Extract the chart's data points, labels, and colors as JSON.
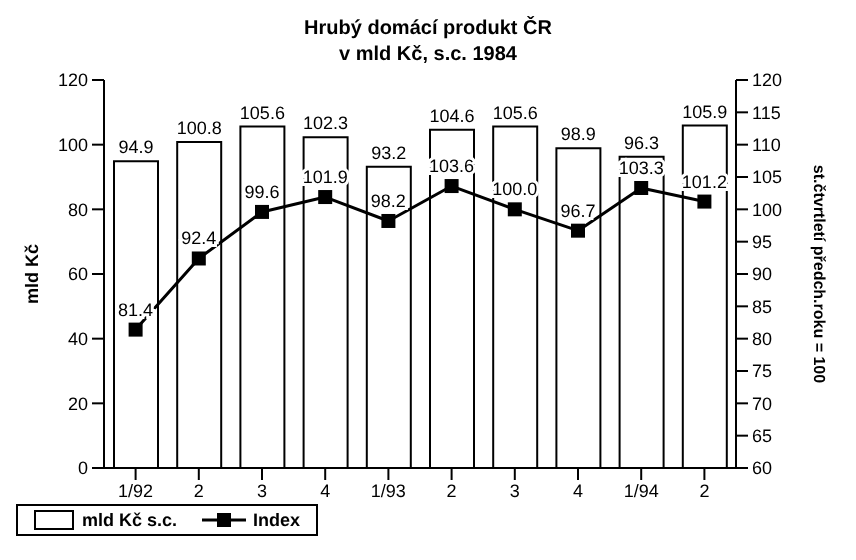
{
  "chart_data": {
    "type": "bar",
    "title": "Hrubý domácí produkt ČR\nv mld Kč, s.c. 1984",
    "ylabel": "mld Kč",
    "y2label": "st.čtvrtletí předch.roku = 100",
    "categories": [
      "1/92",
      "2",
      "3",
      "4",
      "1/93",
      "2",
      "3",
      "4",
      "1/94",
      "2"
    ],
    "series": [
      {
        "name": "mld Kč s.c.",
        "color": "#ffffff",
        "values": [
          94.9,
          100.8,
          105.6,
          102.3,
          93.2,
          104.6,
          105.6,
          98.9,
          96.3,
          105.9
        ]
      },
      {
        "name": "Index",
        "type": "line",
        "axis": "y2",
        "color": "#000000",
        "values": [
          81.4,
          92.4,
          99.6,
          101.9,
          98.2,
          103.6,
          100.0,
          96.7,
          103.3,
          101.2
        ],
        "value_labels": [
          "81.4",
          "92.4",
          "99.6",
          "101.9",
          "98.2",
          "103.6",
          "100.0",
          "96.7",
          "103.3",
          "101.2"
        ]
      }
    ],
    "ylim": [
      0,
      120
    ],
    "yticks": [
      0,
      20,
      40,
      60,
      80,
      100,
      120
    ],
    "y2lim": [
      60,
      120
    ],
    "y2ticks": [
      60,
      65,
      70,
      75,
      80,
      85,
      90,
      95,
      100,
      105,
      110,
      115,
      120
    ],
    "data_labels": true,
    "grid": false,
    "legend": "bottom",
    "marker": "square",
    "line_style": "solid"
  }
}
